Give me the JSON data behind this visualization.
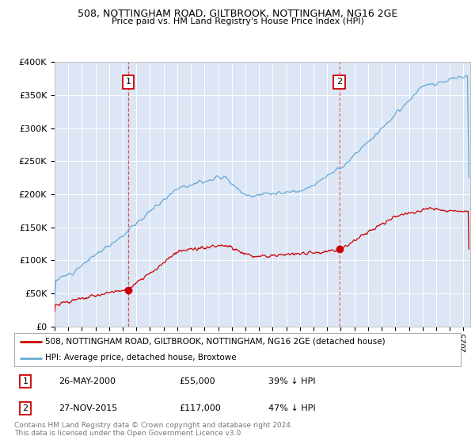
{
  "title": "508, NOTTINGHAM ROAD, GILTBROOK, NOTTINGHAM, NG16 2GE",
  "subtitle": "Price paid vs. HM Land Registry's House Price Index (HPI)",
  "plot_bg_color": "#dce6f5",
  "red_line_color": "#cc0000",
  "blue_line_color": "#6aaad4",
  "sale1_date_num": 2000.4,
  "sale1_price": 55000,
  "sale2_date_num": 2015.9,
  "sale2_price": 117000,
  "legend_line1": "508, NOTTINGHAM ROAD, GILTBROOK, NOTTINGHAM, NG16 2GE (detached house)",
  "legend_line2": "HPI: Average price, detached house, Broxtowe",
  "table_row1_date": "26-MAY-2000",
  "table_row1_price": "£55,000",
  "table_row1_hpi": "39% ↓ HPI",
  "table_row2_date": "27-NOV-2015",
  "table_row2_price": "£117,000",
  "table_row2_hpi": "47% ↓ HPI",
  "footer": "Contains HM Land Registry data © Crown copyright and database right 2024.\nThis data is licensed under the Open Government Licence v3.0.",
  "ylim": [
    0,
    400000
  ],
  "xlim_start": 1995.0,
  "xlim_end": 2025.5
}
